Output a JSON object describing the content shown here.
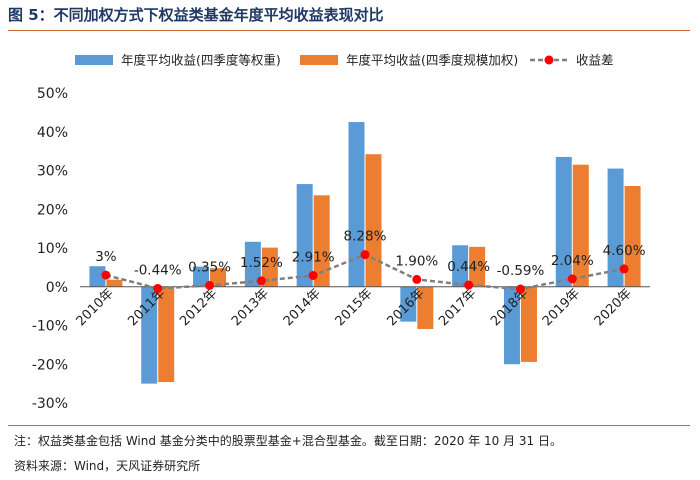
{
  "figure_title": "图 5：不同加权方式下权益类基金年度平均收益表现对比",
  "note": "注：权益类基金包括 Wind 基金分类中的股票型基金+混合型基金。截至日期：2020 年 10 月 31 日。",
  "source": "资料来源：Wind，天风证券研究所",
  "colors": {
    "series1": "#5b9bd5",
    "series2": "#ed7d31",
    "diff_line": "#7f7f7f",
    "diff_marker": "#ff0000",
    "rule": "#c8632b",
    "title": "#1f3864"
  },
  "chart_data": {
    "type": "bar",
    "title": "",
    "xlabel": "",
    "ylabel": "",
    "categories": [
      "2010年",
      "2011年",
      "2012年",
      "2013年",
      "2014年",
      "2015年",
      "2016年",
      "2017年",
      "2018年",
      "2019年",
      "2020年"
    ],
    "series": [
      {
        "name": "年度平均收益(四季度等权重)",
        "type": "bar",
        "values": [
          5.3,
          -25.0,
          5.2,
          11.6,
          26.5,
          42.5,
          -9.0,
          10.7,
          -20.0,
          33.5,
          30.5
        ]
      },
      {
        "name": "年度平均收益(四季度规模加权)",
        "type": "bar",
        "values": [
          1.8,
          -24.6,
          4.8,
          10.1,
          23.6,
          34.2,
          -10.9,
          10.3,
          -19.4,
          31.5,
          26.0
        ]
      },
      {
        "name": "收益差",
        "type": "line",
        "values": [
          3.0,
          -0.44,
          0.35,
          1.52,
          2.91,
          8.28,
          1.9,
          0.44,
          -0.59,
          2.04,
          4.6
        ],
        "labels": [
          "3%",
          "-0.44%",
          "0.35%",
          "1.52%",
          "2.91%",
          "8.28%",
          "1.90%",
          "0.44%",
          "-0.59%",
          "2.04%",
          "4.60%"
        ]
      }
    ],
    "ylim": [
      -30,
      50
    ],
    "yticks": [
      "-30%",
      "-20%",
      "-10%",
      "0%",
      "10%",
      "20%",
      "30%",
      "40%",
      "50%"
    ],
    "ytick_values": [
      -30,
      -20,
      -10,
      0,
      10,
      20,
      30,
      40,
      50
    ],
    "grid": false,
    "legend_position": "top"
  }
}
